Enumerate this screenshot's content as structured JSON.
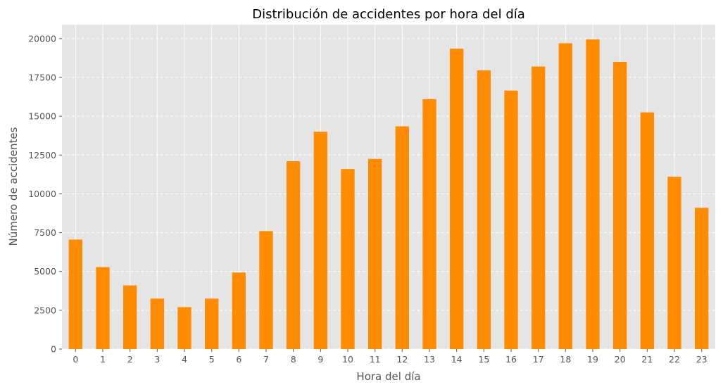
{
  "chart_data": {
    "type": "bar",
    "title": "Distribución de accidentes por hora del día",
    "xlabel": "Hora del día",
    "ylabel": "Número de accidentes",
    "categories": [
      "0",
      "1",
      "2",
      "3",
      "4",
      "5",
      "6",
      "7",
      "8",
      "9",
      "10",
      "11",
      "12",
      "13",
      "14",
      "15",
      "16",
      "17",
      "18",
      "19",
      "20",
      "21",
      "22",
      "23"
    ],
    "values": [
      7050,
      5280,
      4100,
      3250,
      2700,
      3250,
      4930,
      7600,
      12100,
      14000,
      11600,
      12250,
      14350,
      16100,
      19350,
      17950,
      16650,
      18200,
      19700,
      19950,
      18500,
      15250,
      11100,
      9100
    ],
    "ylim": [
      0,
      20900
    ],
    "yticks": [
      0,
      2500,
      5000,
      7500,
      10000,
      12500,
      15000,
      17500,
      20000
    ],
    "grid": true,
    "bar_color": "#ff8c00",
    "background_color": "#e5e5e5",
    "legend": "none"
  }
}
